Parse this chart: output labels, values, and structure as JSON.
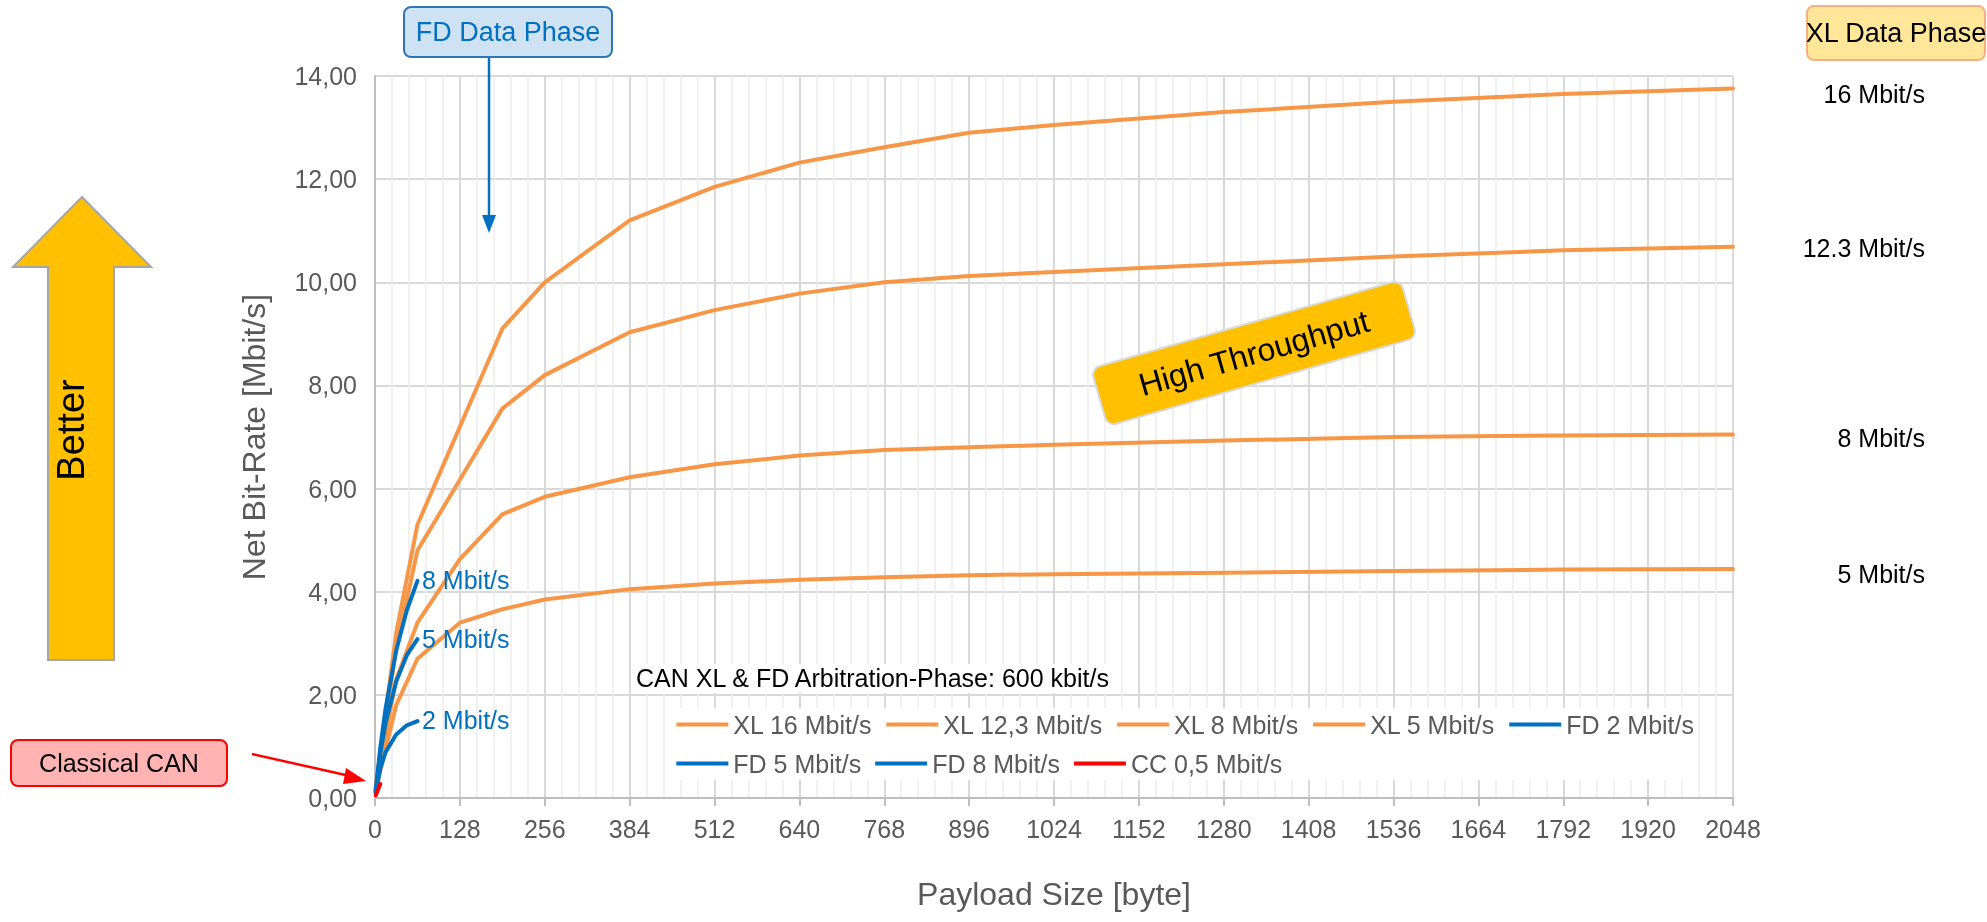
{
  "chart_data": {
    "type": "line",
    "xlabel": "Payload Size [byte]",
    "ylabel": "Net Bit-Rate [Mbit/s]",
    "legend_title": "CAN XL & FD Arbitration-Phase: 600 kbit/s",
    "xlim": [
      0,
      2048
    ],
    "xticks": [
      0,
      128,
      256,
      384,
      512,
      640,
      768,
      896,
      1024,
      1152,
      1280,
      1408,
      1536,
      1664,
      1792,
      1920,
      2048
    ],
    "ylim": [
      0,
      14
    ],
    "yticks": [
      {
        "value": 0,
        "label": "0,00"
      },
      {
        "value": 2,
        "label": "2,00"
      },
      {
        "value": 4,
        "label": "4,00"
      },
      {
        "value": 6,
        "label": "6,00"
      },
      {
        "value": 8,
        "label": "8,00"
      },
      {
        "value": 10,
        "label": "10,00"
      },
      {
        "value": 12,
        "label": "12,00"
      },
      {
        "value": 14,
        "label": "14,00"
      }
    ],
    "grid": true,
    "legend": "bottom right",
    "marker": "none",
    "line_style": "solid",
    "series": [
      {
        "name": "XL 16 Mbit/s",
        "color": "#f79646",
        "x": [
          1,
          32,
          64,
          128,
          192,
          256,
          384,
          512,
          640,
          768,
          896,
          1024,
          1280,
          1536,
          1792,
          2048
        ],
        "values": [
          0.2,
          3.2,
          5.3,
          7.2,
          9.1,
          10.0,
          11.2,
          11.85,
          12.32,
          12.62,
          12.9,
          13.05,
          13.3,
          13.5,
          13.65,
          13.76
        ]
      },
      {
        "name": "XL 12,3 Mbit/s",
        "color": "#f79646",
        "x": [
          1,
          32,
          64,
          128,
          192,
          256,
          384,
          512,
          640,
          768,
          896,
          1024,
          1280,
          1536,
          1792,
          2048
        ],
        "values": [
          0.2,
          2.9,
          4.8,
          6.17,
          7.55,
          8.2,
          9.03,
          9.46,
          9.78,
          10.0,
          10.12,
          10.2,
          10.35,
          10.5,
          10.62,
          10.69
        ]
      },
      {
        "name": "XL 8 Mbit/s",
        "color": "#f79646",
        "x": [
          1,
          32,
          64,
          128,
          192,
          256,
          384,
          512,
          640,
          768,
          896,
          1024,
          1280,
          1536,
          1792,
          2048
        ],
        "values": [
          0.18,
          2.3,
          3.4,
          4.63,
          5.5,
          5.84,
          6.22,
          6.47,
          6.64,
          6.75,
          6.8,
          6.85,
          6.93,
          7.0,
          7.03,
          7.05
        ]
      },
      {
        "name": "XL 5 Mbit/s",
        "color": "#f79646",
        "x": [
          1,
          32,
          64,
          128,
          192,
          256,
          384,
          512,
          640,
          768,
          896,
          1024,
          1280,
          1536,
          1792,
          2048
        ],
        "values": [
          0.16,
          1.8,
          2.7,
          3.4,
          3.66,
          3.85,
          4.05,
          4.16,
          4.23,
          4.28,
          4.32,
          4.34,
          4.37,
          4.4,
          4.43,
          4.44
        ]
      },
      {
        "name": "FD 2 Mbit/s",
        "color": "#0070c0",
        "x": [
          1,
          8,
          16,
          32,
          48,
          64
        ],
        "values": [
          0.1,
          0.57,
          0.89,
          1.23,
          1.41,
          1.49
        ]
      },
      {
        "name": "FD 5 Mbit/s",
        "color": "#0070c0",
        "x": [
          1,
          8,
          16,
          32,
          48,
          64
        ],
        "values": [
          0.12,
          0.86,
          1.46,
          2.26,
          2.77,
          3.08
        ]
      },
      {
        "name": "FD 8 Mbit/s",
        "color": "#0070c0",
        "x": [
          1,
          8,
          16,
          32,
          48,
          64
        ],
        "values": [
          0.13,
          0.98,
          1.74,
          2.86,
          3.64,
          4.21
        ]
      },
      {
        "name": "CC 0,5 Mbit/s",
        "color": "#ff0000",
        "x": [
          1,
          8
        ],
        "values": [
          0.05,
          0.27
        ]
      }
    ],
    "annotations": [
      "FD Data Phase",
      "XL Data Phase",
      "Better",
      "High Throughput",
      "Classical CAN",
      "16 Mbit/s",
      "12.3 Mbit/s",
      "8 Mbit/s",
      "5 Mbit/s",
      "8 Mbit/s",
      "5 Mbit/s",
      "2 Mbit/s"
    ]
  }
}
